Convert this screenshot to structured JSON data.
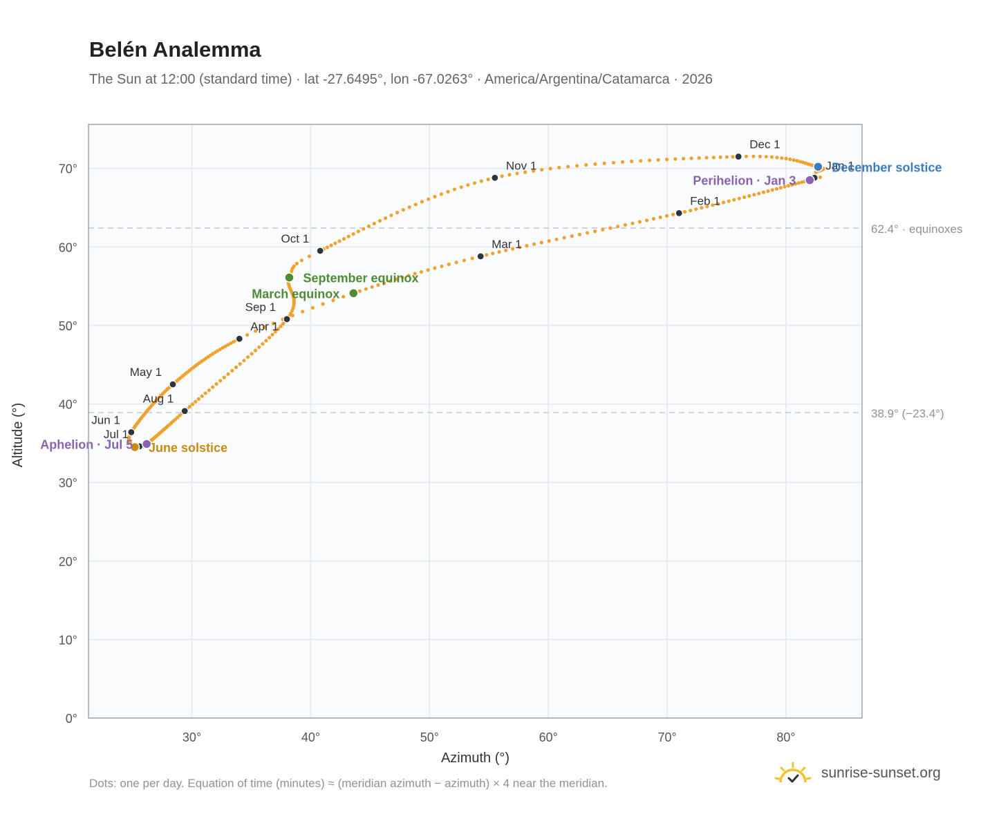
{
  "header": {
    "title": "Belén Analemma",
    "subtitle": "The Sun at 12:00 (standard time) · lat -27.6495°, lon -67.0263° · America/Argentina/Catamarca · 2026"
  },
  "footer": {
    "note": "Dots: one per day. Equation of time (minutes) ≈ (meridian azimuth − azimuth) × 4 near the meridian.",
    "brand": "sunrise-sunset.org",
    "brand_icon": "sun-logo-icon"
  },
  "colors": {
    "path": "#f0a22e",
    "month_dot": "#2d3440",
    "equinox": "#4f8a34",
    "solstice_december": "#3b7bbf",
    "solstice_june": "#c88a12",
    "aphelion_perihelion": "#8b62b1",
    "plot_bg": "#f9fbfd",
    "grid": "#e3e8ee",
    "frame": "#9aa3ad",
    "ref_line": "#c3c9d0"
  },
  "chart_data": {
    "type": "scatter",
    "xlabel": "Azimuth (°)",
    "ylabel": "Altitude (°)",
    "xlim": [
      21.3,
      86.4
    ],
    "ylim": [
      0,
      75.6
    ],
    "x_ticks": [
      30,
      40,
      50,
      60,
      70,
      80
    ],
    "x_tick_labels": [
      "30°",
      "40°",
      "50°",
      "60°",
      "70°",
      "80°"
    ],
    "y_ticks": [
      0,
      10,
      20,
      30,
      40,
      50,
      60,
      70
    ],
    "y_tick_labels": [
      "0°",
      "10°",
      "20°",
      "30°",
      "40°",
      "50°",
      "60°",
      "70°"
    ],
    "grid": true,
    "reference_lines": [
      {
        "y": 62.4,
        "label": "62.4° · equinoxes"
      },
      {
        "y": 38.9,
        "label": "38.9° (−23.4°)"
      }
    ],
    "path_dates": [
      "Jan 1",
      "Jan 3",
      "Feb 1",
      "Mar 1",
      "Mar 20",
      "Apr 1",
      "May 1",
      "Jun 1",
      "Jun 21",
      "Jul 1",
      "Jul 5",
      "Aug 1",
      "Sep 1",
      "Sep 23",
      "Oct 1",
      "Nov 1",
      "Dec 1",
      "Dec 21",
      "Dec 31"
    ],
    "path_x": [
      82.4,
      82.0,
      71.0,
      54.3,
      43.6,
      34.0,
      28.4,
      24.9,
      25.2,
      25.6,
      26.2,
      29.4,
      38.0,
      38.2,
      40.8,
      55.5,
      76.0,
      82.7,
      82.5
    ],
    "path_y": [
      68.8,
      68.5,
      64.3,
      58.8,
      54.1,
      48.3,
      42.5,
      36.4,
      34.5,
      34.6,
      34.9,
      39.1,
      50.8,
      56.1,
      59.5,
      68.8,
      71.5,
      70.2,
      69.5
    ],
    "month_markers": [
      {
        "label": "Jan 1",
        "x": 82.4,
        "y": 68.8,
        "label_side": "right"
      },
      {
        "label": "Feb 1",
        "x": 71.0,
        "y": 64.3,
        "label_side": "right"
      },
      {
        "label": "Mar 1",
        "x": 54.3,
        "y": 58.8,
        "label_side": "right"
      },
      {
        "label": "Apr 1",
        "x": 34.0,
        "y": 48.3,
        "label_side": "right"
      },
      {
        "label": "May 1",
        "x": 28.4,
        "y": 42.5,
        "label_side": "left"
      },
      {
        "label": "Jun 1",
        "x": 24.9,
        "y": 36.4,
        "label_side": "left"
      },
      {
        "label": "Jul 1",
        "x": 25.6,
        "y": 34.6,
        "label_side": "left"
      },
      {
        "label": "Aug 1",
        "x": 29.4,
        "y": 39.1,
        "label_side": "left"
      },
      {
        "label": "Sep 1",
        "x": 38.0,
        "y": 50.8,
        "label_side": "left"
      },
      {
        "label": "Oct 1",
        "x": 40.8,
        "y": 59.5,
        "label_side": "left"
      },
      {
        "label": "Nov 1",
        "x": 55.5,
        "y": 68.8,
        "label_side": "right"
      },
      {
        "label": "Dec 1",
        "x": 76.0,
        "y": 71.5,
        "label_side": "right"
      }
    ],
    "events": [
      {
        "label": "December solstice",
        "x": 82.7,
        "y": 70.2,
        "color_key": "solstice_december",
        "label_side": "right"
      },
      {
        "label": "Perihelion · Jan 3",
        "x": 82.0,
        "y": 68.5,
        "color_key": "aphelion_perihelion",
        "label_side": "left"
      },
      {
        "label": "March equinox",
        "x": 43.6,
        "y": 54.1,
        "color_key": "equinox",
        "label_side": "left"
      },
      {
        "label": "September equinox",
        "x": 38.2,
        "y": 56.1,
        "color_key": "equinox",
        "label_side": "right"
      },
      {
        "label": "June solstice",
        "x": 25.2,
        "y": 34.5,
        "color_key": "solstice_june",
        "label_side": "right"
      },
      {
        "label": "Aphelion · Jul 5",
        "x": 26.2,
        "y": 34.9,
        "color_key": "aphelion_perihelion",
        "label_side": "left"
      }
    ]
  }
}
